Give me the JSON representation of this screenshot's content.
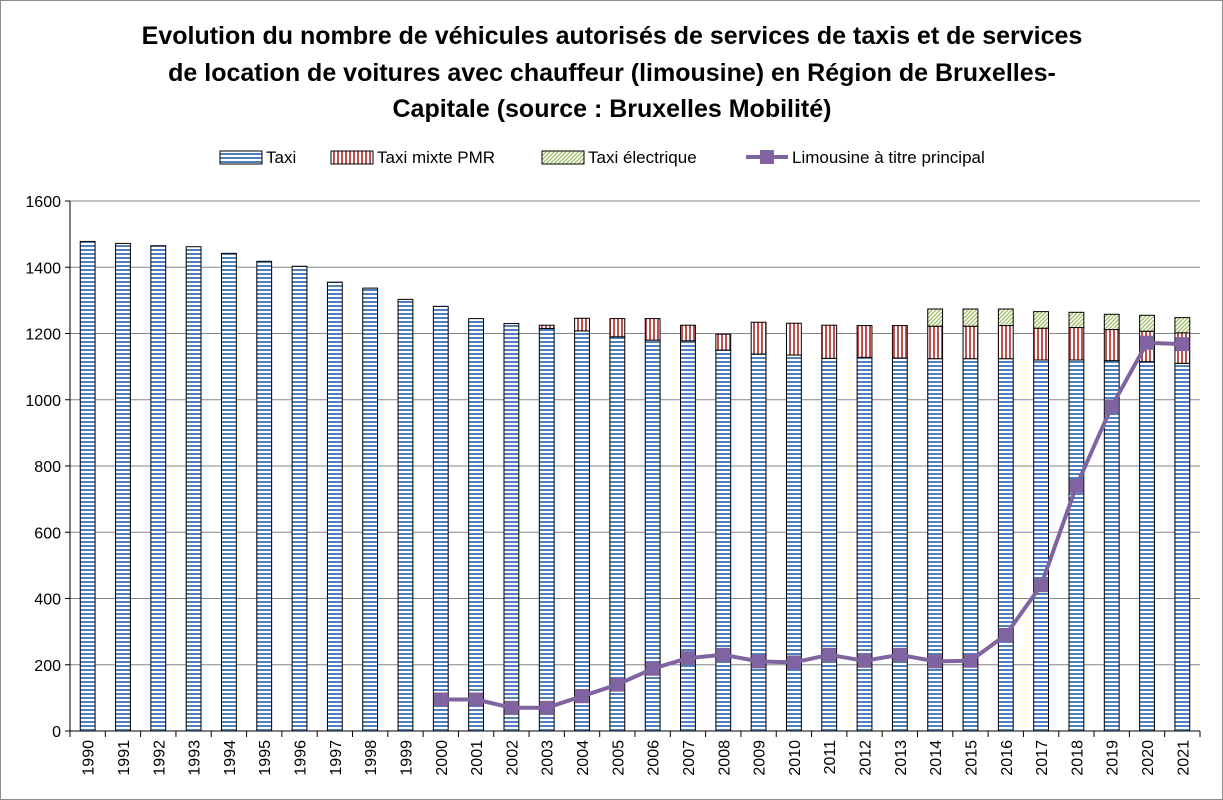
{
  "chart_data": {
    "type": "bar",
    "stacked": true,
    "title_lines": [
      "Evolution du nombre de véhicules autorisés de services de taxis et de services",
      "de location de voitures avec chauffeur (limousine) en Région de Bruxelles-",
      "Capitale (source : Bruxelles Mobilité)"
    ],
    "xlabel": "",
    "ylabel": "",
    "ylim": [
      0,
      1600
    ],
    "yticks": [
      "0",
      "200",
      "400",
      "600",
      "800",
      "1000",
      "1200",
      "1400",
      "1600"
    ],
    "grid": true,
    "legend_position": "top",
    "categories": [
      "1990",
      "1991",
      "1992",
      "1993",
      "1994",
      "1995",
      "1996",
      "1997",
      "1998",
      "1999",
      "2000",
      "2001",
      "2002",
      "2003",
      "2004",
      "2005",
      "2006",
      "2007",
      "2008",
      "2009",
      "2010",
      "2011",
      "2012",
      "2013",
      "2014",
      "2015",
      "2016",
      "2017",
      "2018",
      "2019",
      "2020",
      "2021"
    ],
    "series": [
      {
        "name": "Taxi",
        "kind": "bar",
        "color": "#4f81bd",
        "pattern": "horizontal-lines",
        "values": [
          1478,
          1472,
          1465,
          1462,
          1442,
          1418,
          1403,
          1355,
          1337,
          1303,
          1282,
          1245,
          1230,
          1215,
          1208,
          1190,
          1180,
          1178,
          1150,
          1138,
          1135,
          1125,
          1128,
          1126,
          1124,
          1124,
          1124,
          1120,
          1120,
          1118,
          1115,
          1110
        ]
      },
      {
        "name": "Taxi mixte PMR",
        "kind": "bar",
        "color": "#c0504d",
        "pattern": "vertical-lines",
        "values": [
          0,
          0,
          0,
          0,
          0,
          0,
          0,
          0,
          0,
          0,
          0,
          0,
          0,
          10,
          38,
          55,
          65,
          47,
          48,
          96,
          96,
          100,
          96,
          98,
          98,
          98,
          100,
          96,
          98,
          94,
          92,
          92
        ]
      },
      {
        "name": "Taxi électrique",
        "kind": "bar",
        "color": "#9bbb59",
        "pattern": "diagonal-lines",
        "values": [
          0,
          0,
          0,
          0,
          0,
          0,
          0,
          0,
          0,
          0,
          0,
          0,
          0,
          0,
          0,
          0,
          0,
          0,
          0,
          0,
          0,
          0,
          0,
          0,
          52,
          52,
          50,
          50,
          46,
          46,
          48,
          46
        ]
      },
      {
        "name": "Limousine à titre principal",
        "kind": "line",
        "color": "#8064a2",
        "marker": "square",
        "values": [
          null,
          null,
          null,
          null,
          null,
          null,
          null,
          null,
          null,
          null,
          95,
          95,
          70,
          70,
          105,
          140,
          188,
          220,
          230,
          210,
          207,
          230,
          212,
          230,
          210,
          212,
          290,
          440,
          740,
          980,
          1172,
          1168
        ]
      }
    ]
  }
}
